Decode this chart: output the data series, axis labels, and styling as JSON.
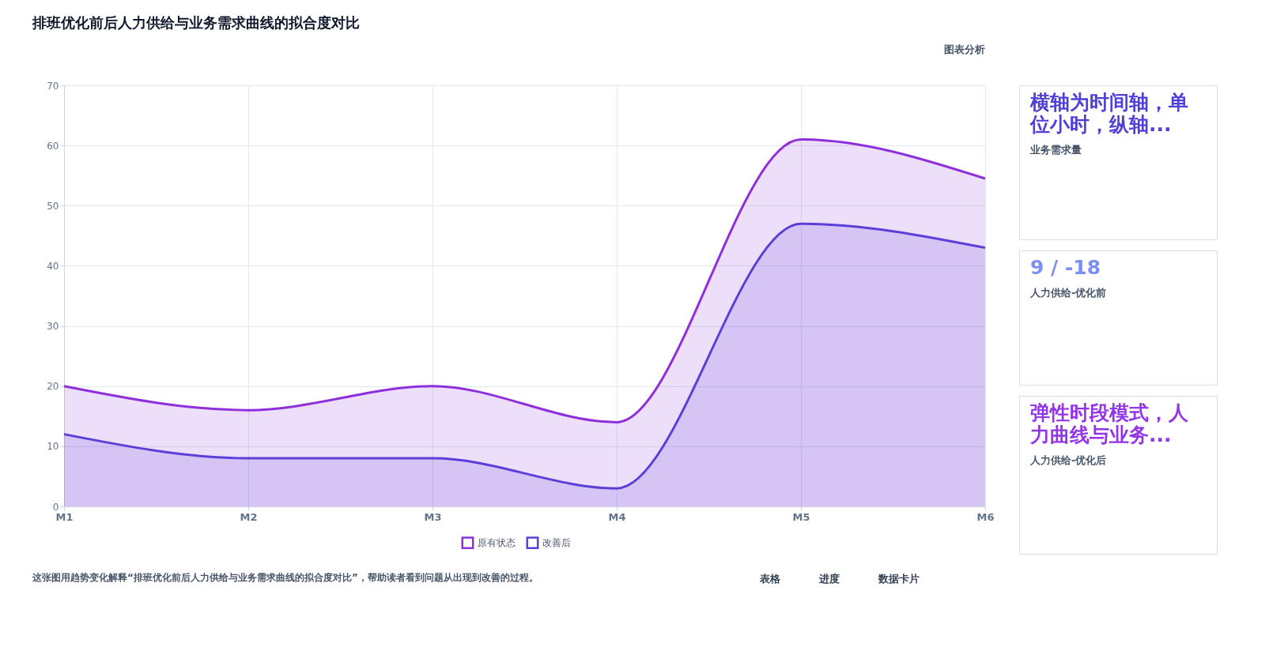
{
  "chart_data": [
    {
      "type": "area",
      "title": "排班优化前后人力供给与业务需求曲线的拟合度对比",
      "categories": [
        "M1",
        "M2",
        "M3",
        "M4",
        "M5",
        "M6"
      ],
      "series": [
        {
          "name": "原有状态",
          "color": "#8e2fdb",
          "values": [
            20,
            16,
            20,
            14,
            61,
            54.5
          ]
        },
        {
          "name": "改善后",
          "color": "#5a3fd8",
          "values": [
            12,
            8,
            8,
            3,
            47,
            43
          ]
        }
      ],
      "ylim": [
        0,
        70
      ],
      "yticks": [
        0,
        10,
        20,
        30,
        40,
        50,
        60,
        70
      ],
      "grid": true,
      "legend": "bottom",
      "annotations": [
        "图表分析",
        "这张图用趋势变化解释“排班优化前后人力供给与业务需求曲线的拟合度对比”，帮助读者看到问题从出现到改善的过程。",
        "表格",
        "进度",
        "数据卡片"
      ]
    },
    {
      "type": "other",
      "title": "横轴为时间轴，单位小时，纵轴...",
      "subtitle": "业务需求量"
    },
    {
      "type": "other",
      "title": "9 / -18",
      "subtitle": "人力供给-优化前"
    },
    {
      "type": "other",
      "title": "弹性时段模式，人力曲线与业务...",
      "subtitle": "人力供给-优化后"
    }
  ]
}
